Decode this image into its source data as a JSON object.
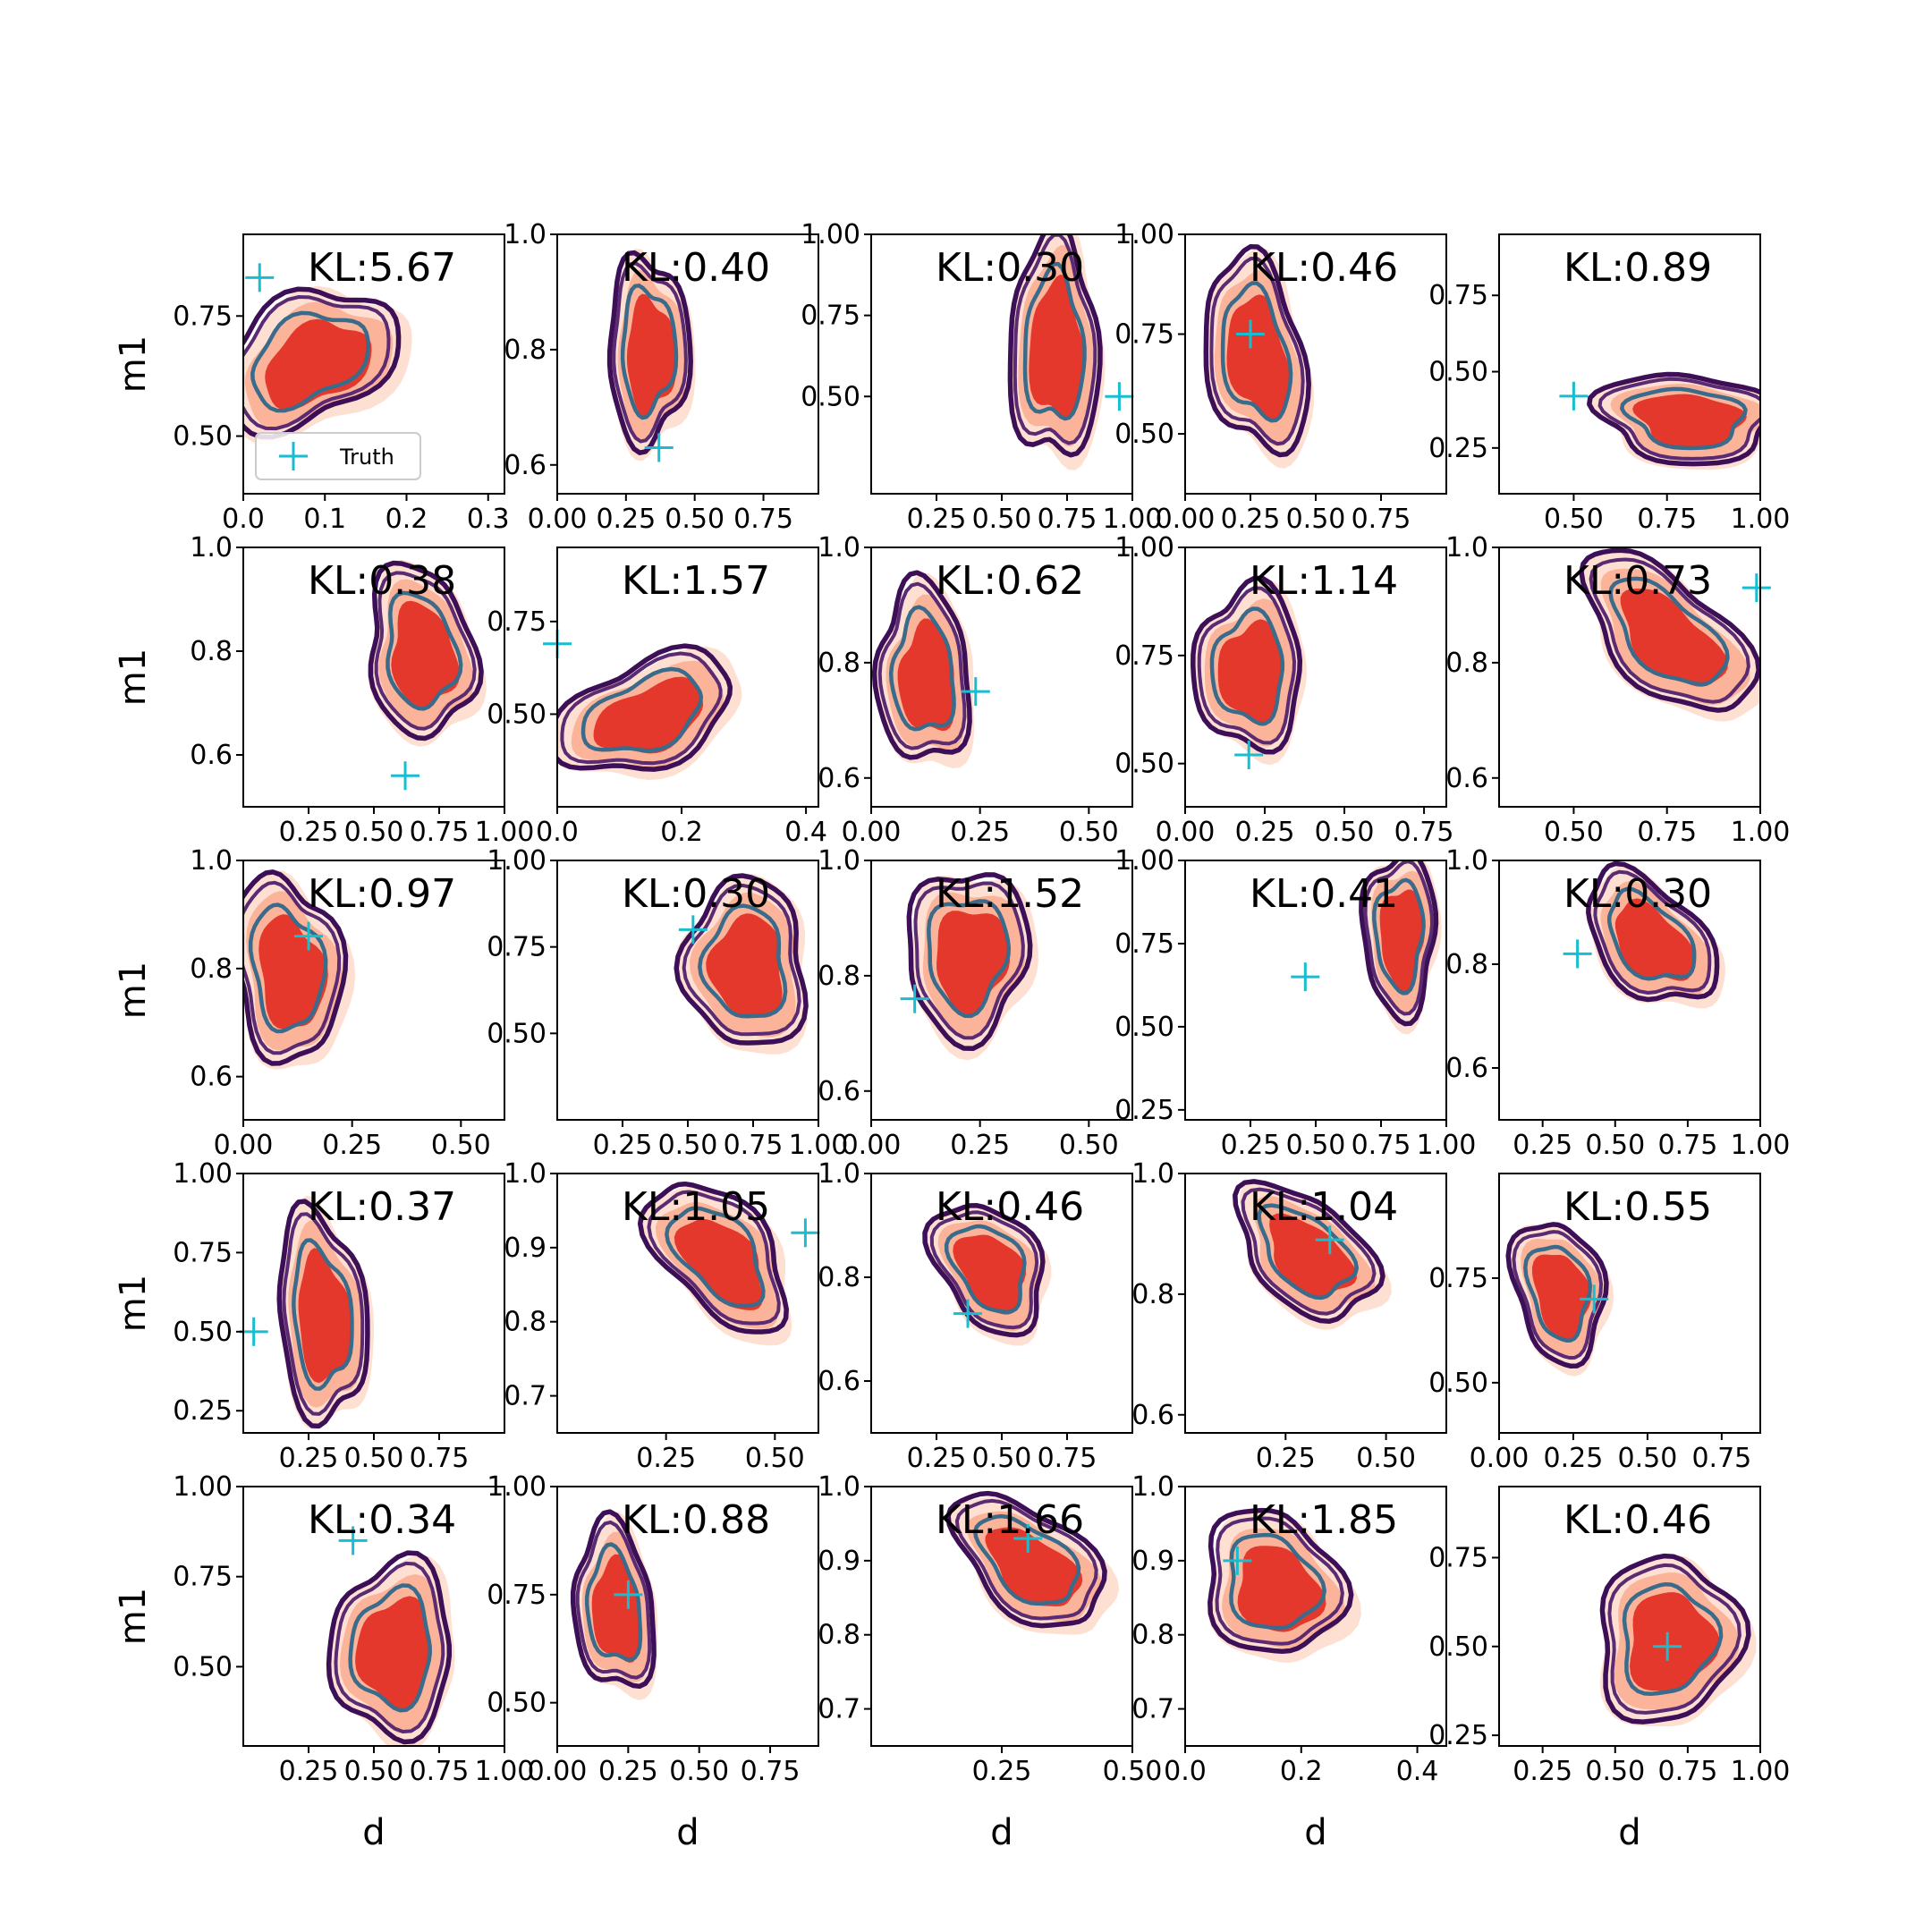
{
  "chart_data": {
    "type": "contour-grid",
    "rows": 5,
    "cols": 5,
    "xlabel": "d",
    "ylabel": "m1",
    "legend": {
      "label": "Truth",
      "placement": "lower-left",
      "panel": 0
    },
    "colors": {
      "truth_marker": "#17becf",
      "fill_levels": [
        "#fde0d2",
        "#fbb49a",
        "#e3382b"
      ],
      "contour_outer": "#3c0f57",
      "contour_mid": "#5a2a72",
      "contour_inner": "#3b6b8a"
    },
    "panels": [
      {
        "kl": "KL:5.67",
        "truth": [
          0.02,
          0.83
        ],
        "center": [
          0.08,
          0.66
        ],
        "spread": [
          0.08,
          0.13
        ],
        "tilt": -20,
        "xlim": [
          0.0,
          0.32
        ],
        "ylim": [
          0.38,
          0.92
        ],
        "xticks": [
          "0.0",
          "0.1",
          "0.2",
          "0.3"
        ],
        "xtick_values": [
          0.0,
          0.1,
          0.2,
          0.3
        ],
        "yticks": [
          "0.50",
          "0.75"
        ],
        "ytick_values": [
          0.5,
          0.75
        ]
      },
      {
        "kl": "KL:0.40",
        "truth": [
          0.37,
          0.63
        ],
        "center": [
          0.33,
          0.8
        ],
        "spread": [
          0.12,
          0.14
        ],
        "tilt": 10,
        "xlim": [
          0.0,
          0.95
        ],
        "ylim": [
          0.55,
          1.0
        ],
        "xticks": [
          "0.00",
          "0.25",
          "0.50",
          "0.75"
        ],
        "xtick_values": [
          0.0,
          0.25,
          0.5,
          0.75
        ],
        "yticks": [
          "0.6",
          "0.8",
          "1.0"
        ],
        "ytick_values": [
          0.6,
          0.8,
          1.0
        ]
      },
      {
        "kl": "KL:0.30",
        "truth": [
          0.95,
          0.5
        ],
        "center": [
          0.7,
          0.65
        ],
        "spread": [
          0.14,
          0.3
        ],
        "tilt": 0,
        "xlim": [
          0.0,
          1.0
        ],
        "ylim": [
          0.2,
          1.0
        ],
        "xticks": [
          "0.25",
          "0.50",
          "0.75",
          "1.00"
        ],
        "xtick_values": [
          0.25,
          0.5,
          0.75,
          1.0
        ],
        "yticks": [
          "0.50",
          "0.75",
          "1.00"
        ],
        "ytick_values": [
          0.5,
          0.75,
          1.0
        ]
      },
      {
        "kl": "KL:0.46",
        "truth": [
          0.25,
          0.75
        ],
        "center": [
          0.27,
          0.7
        ],
        "spread": [
          0.15,
          0.22
        ],
        "tilt": 20,
        "xlim": [
          0.0,
          1.0
        ],
        "ylim": [
          0.35,
          1.0
        ],
        "xticks": [
          "0.00",
          "0.25",
          "0.50",
          "0.75"
        ],
        "xtick_values": [
          0.0,
          0.25,
          0.5,
          0.75
        ],
        "yticks": [
          "0.50",
          "0.75",
          "1.00"
        ],
        "ytick_values": [
          0.5,
          0.75,
          1.0
        ]
      },
      {
        "kl": "KL:0.89",
        "truth": [
          0.5,
          0.42
        ],
        "center": [
          0.8,
          0.35
        ],
        "spread": [
          0.2,
          0.12
        ],
        "tilt": -5,
        "xlim": [
          0.3,
          1.0
        ],
        "ylim": [
          0.1,
          0.95
        ],
        "xticks": [
          "0.50",
          "0.75",
          "1.00"
        ],
        "xtick_values": [
          0.5,
          0.75,
          1.0
        ],
        "yticks": [
          "0.25",
          "0.50",
          "0.75"
        ],
        "ytick_values": [
          0.25,
          0.5,
          0.75
        ]
      },
      {
        "kl": "KL:0.38",
        "truth": [
          0.62,
          0.56
        ],
        "center": [
          0.68,
          0.8
        ],
        "spread": [
          0.18,
          0.13
        ],
        "tilt": -15,
        "xlim": [
          0.0,
          1.0
        ],
        "ylim": [
          0.5,
          1.0
        ],
        "xticks": [
          "0.25",
          "0.50",
          "0.75",
          "1.00"
        ],
        "xtick_values": [
          0.25,
          0.5,
          0.75,
          1.0
        ],
        "yticks": [
          "0.6",
          "0.8",
          "1.0"
        ],
        "ytick_values": [
          0.6,
          0.8,
          1.0
        ]
      },
      {
        "kl": "KL:1.57",
        "truth": [
          0.0,
          0.69
        ],
        "center": [
          0.14,
          0.5
        ],
        "spread": [
          0.1,
          0.15
        ],
        "tilt": -35,
        "xlim": [
          0.0,
          0.42
        ],
        "ylim": [
          0.25,
          0.95
        ],
        "xticks": [
          "0.0",
          "0.2",
          "0.4"
        ],
        "xtick_values": [
          0.0,
          0.2,
          0.4
        ],
        "yticks": [
          "0.50",
          "0.75"
        ],
        "ytick_values": [
          0.5,
          0.75
        ]
      },
      {
        "kl": "KL:0.62",
        "truth": [
          0.24,
          0.75
        ],
        "center": [
          0.12,
          0.78
        ],
        "spread": [
          0.09,
          0.13
        ],
        "tilt": 10,
        "xlim": [
          0.0,
          0.6
        ],
        "ylim": [
          0.55,
          1.0
        ],
        "xticks": [
          "0.00",
          "0.25",
          "0.50"
        ],
        "xtick_values": [
          0.0,
          0.25,
          0.5
        ],
        "yticks": [
          "0.6",
          "0.8",
          "1.0"
        ],
        "ytick_values": [
          0.6,
          0.8,
          1.0
        ]
      },
      {
        "kl": "KL:1.14",
        "truth": [
          0.2,
          0.52
        ],
        "center": [
          0.2,
          0.72
        ],
        "spread": [
          0.14,
          0.16
        ],
        "tilt": 15,
        "xlim": [
          0.0,
          0.82
        ],
        "ylim": [
          0.4,
          1.0
        ],
        "xticks": [
          "0.00",
          "0.25",
          "0.50",
          "0.75"
        ],
        "xtick_values": [
          0.0,
          0.25,
          0.5,
          0.75
        ],
        "yticks": [
          "0.50",
          "0.75",
          "1.00"
        ],
        "ytick_values": [
          0.5,
          0.75,
          1.0
        ]
      },
      {
        "kl": "KL:0.73",
        "truth": [
          0.99,
          0.93
        ],
        "center": [
          0.75,
          0.85
        ],
        "spread": [
          0.2,
          0.09
        ],
        "tilt": -25,
        "xlim": [
          0.3,
          1.0
        ],
        "ylim": [
          0.55,
          1.0
        ],
        "xticks": [
          "0.50",
          "0.75",
          "1.00"
        ],
        "xtick_values": [
          0.5,
          0.75,
          1.0
        ],
        "yticks": [
          "0.6",
          "0.8",
          "1.0"
        ],
        "ytick_values": [
          0.6,
          0.8,
          1.0
        ]
      },
      {
        "kl": "KL:0.97",
        "truth": [
          0.15,
          0.86
        ],
        "center": [
          0.1,
          0.8
        ],
        "spread": [
          0.1,
          0.15
        ],
        "tilt": 10,
        "xlim": [
          0.0,
          0.6
        ],
        "ylim": [
          0.52,
          1.0
        ],
        "xticks": [
          "0.00",
          "0.25",
          "0.50"
        ],
        "xtick_values": [
          0.0,
          0.25,
          0.5
        ],
        "yticks": [
          "0.6",
          "0.8",
          "1.0"
        ],
        "ytick_values": [
          0.6,
          0.8,
          1.0
        ]
      },
      {
        "kl": "KL:0.30",
        "truth": [
          0.52,
          0.8
        ],
        "center": [
          0.72,
          0.7
        ],
        "spread": [
          0.2,
          0.2
        ],
        "tilt": -20,
        "xlim": [
          0.0,
          1.0
        ],
        "ylim": [
          0.25,
          1.0
        ],
        "xticks": [
          "0.25",
          "0.50",
          "0.75",
          "1.00"
        ],
        "xtick_values": [
          0.25,
          0.5,
          0.75,
          1.0
        ],
        "yticks": [
          "0.50",
          "0.75",
          "1.00"
        ],
        "ytick_values": [
          0.5,
          0.75,
          1.0
        ]
      },
      {
        "kl": "KL:1.52",
        "truth": [
          0.1,
          0.76
        ],
        "center": [
          0.22,
          0.84
        ],
        "spread": [
          0.12,
          0.12
        ],
        "tilt": -40,
        "xlim": [
          0.0,
          0.6
        ],
        "ylim": [
          0.55,
          1.0
        ],
        "xticks": [
          "0.00",
          "0.25",
          "0.50"
        ],
        "xtick_values": [
          0.0,
          0.25,
          0.5
        ],
        "yticks": [
          "0.6",
          "0.8",
          "1.0"
        ],
        "ytick_values": [
          0.6,
          0.8,
          1.0
        ]
      },
      {
        "kl": "KL:0.41",
        "truth": [
          0.46,
          0.65
        ],
        "center": [
          0.82,
          0.78
        ],
        "spread": [
          0.12,
          0.2
        ],
        "tilt": 0,
        "xlim": [
          0.0,
          1.0
        ],
        "ylim": [
          0.22,
          1.0
        ],
        "xticks": [
          "0.25",
          "0.50",
          "0.75",
          "1.00"
        ],
        "xtick_values": [
          0.25,
          0.5,
          0.75,
          1.0
        ],
        "yticks": [
          "0.25",
          "0.50",
          "0.75",
          "1.00"
        ],
        "ytick_values": [
          0.25,
          0.5,
          0.75,
          1.0
        ]
      },
      {
        "kl": "KL:0.30",
        "truth": [
          0.37,
          0.82
        ],
        "center": [
          0.62,
          0.85
        ],
        "spread": [
          0.2,
          0.09
        ],
        "tilt": -20,
        "xlim": [
          0.1,
          1.0
        ],
        "ylim": [
          0.5,
          1.0
        ],
        "xticks": [
          "0.25",
          "0.50",
          "0.75",
          "1.00"
        ],
        "xtick_values": [
          0.25,
          0.5,
          0.75,
          1.0
        ],
        "yticks": [
          "0.6",
          "0.8",
          "1.0"
        ],
        "ytick_values": [
          0.6,
          0.8,
          1.0
        ]
      },
      {
        "kl": "KL:0.37",
        "truth": [
          0.04,
          0.5
        ],
        "center": [
          0.3,
          0.55
        ],
        "spread": [
          0.14,
          0.28
        ],
        "tilt": 10,
        "xlim": [
          0.0,
          1.0
        ],
        "ylim": [
          0.18,
          1.0
        ],
        "xticks": [
          "0.25",
          "0.50",
          "0.75"
        ],
        "xtick_values": [
          0.25,
          0.5,
          0.75
        ],
        "yticks": [
          "0.25",
          "0.50",
          "0.75",
          "1.00"
        ],
        "ytick_values": [
          0.25,
          0.5,
          0.75,
          1.0
        ]
      },
      {
        "kl": "KL:1.05",
        "truth": [
          0.57,
          0.92
        ],
        "center": [
          0.37,
          0.89
        ],
        "spread": [
          0.14,
          0.07
        ],
        "tilt": -25,
        "xlim": [
          0.0,
          0.6
        ],
        "ylim": [
          0.65,
          1.0
        ],
        "xticks": [
          "0.25",
          "0.50"
        ],
        "xtick_values": [
          0.25,
          0.5
        ],
        "yticks": [
          "0.7",
          "0.8",
          "0.9",
          "1.0"
        ],
        "ytick_values": [
          0.7,
          0.8,
          0.9,
          1.0
        ]
      },
      {
        "kl": "KL:0.46",
        "truth": [
          0.37,
          0.73
        ],
        "center": [
          0.45,
          0.82
        ],
        "spread": [
          0.18,
          0.1
        ],
        "tilt": -15,
        "xlim": [
          0.0,
          1.0
        ],
        "ylim": [
          0.5,
          1.0
        ],
        "xticks": [
          "0.25",
          "0.50",
          "0.75"
        ],
        "xtick_values": [
          0.25,
          0.5,
          0.75
        ],
        "yticks": [
          "0.6",
          "0.8",
          "1.0"
        ],
        "ytick_values": [
          0.6,
          0.8,
          1.0
        ]
      },
      {
        "kl": "KL:1.04",
        "truth": [
          0.36,
          0.89
        ],
        "center": [
          0.3,
          0.87
        ],
        "spread": [
          0.15,
          0.08
        ],
        "tilt": -20,
        "xlim": [
          0.0,
          0.65
        ],
        "ylim": [
          0.57,
          1.0
        ],
        "xticks": [
          "0.25",
          "0.50"
        ],
        "xtick_values": [
          0.25,
          0.5
        ],
        "yticks": [
          "0.6",
          "0.8",
          "1.0"
        ],
        "ytick_values": [
          0.6,
          0.8,
          1.0
        ]
      },
      {
        "kl": "KL:0.55",
        "truth": [
          0.32,
          0.7
        ],
        "center": [
          0.2,
          0.72
        ],
        "spread": [
          0.12,
          0.15
        ],
        "tilt": 25,
        "xlim": [
          0.0,
          0.88
        ],
        "ylim": [
          0.38,
          1.0
        ],
        "xticks": [
          "0.00",
          "0.25",
          "0.50",
          "0.75"
        ],
        "xtick_values": [
          0.0,
          0.25,
          0.5,
          0.75
        ],
        "yticks": [
          "0.50",
          "0.75"
        ],
        "ytick_values": [
          0.5,
          0.75
        ]
      },
      {
        "kl": "KL:0.34",
        "truth": [
          0.42,
          0.85
        ],
        "center": [
          0.57,
          0.55
        ],
        "spread": [
          0.2,
          0.2
        ],
        "tilt": -35,
        "xlim": [
          0.0,
          1.0
        ],
        "ylim": [
          0.28,
          1.0
        ],
        "xticks": [
          "0.25",
          "0.50",
          "0.75",
          "1.00"
        ],
        "xtick_values": [
          0.25,
          0.5,
          0.75,
          1.0
        ],
        "yticks": [
          "0.50",
          "0.75",
          "1.00"
        ],
        "ytick_values": [
          0.5,
          0.75,
          1.0
        ]
      },
      {
        "kl": "KL:0.88",
        "truth": [
          0.25,
          0.75
        ],
        "center": [
          0.2,
          0.72
        ],
        "spread": [
          0.12,
          0.16
        ],
        "tilt": 15,
        "xlim": [
          0.0,
          0.92
        ],
        "ylim": [
          0.4,
          1.0
        ],
        "xticks": [
          "0.00",
          "0.25",
          "0.50",
          "0.75"
        ],
        "xtick_values": [
          0.0,
          0.25,
          0.5,
          0.75
        ],
        "yticks": [
          "0.50",
          "0.75",
          "1.00"
        ],
        "ytick_values": [
          0.5,
          0.75,
          1.0
        ]
      },
      {
        "kl": "KL:1.66",
        "truth": [
          0.3,
          0.93
        ],
        "center": [
          0.3,
          0.9
        ],
        "spread": [
          0.13,
          0.06
        ],
        "tilt": -25,
        "xlim": [
          0.0,
          0.5
        ],
        "ylim": [
          0.65,
          1.0
        ],
        "xticks": [
          "0.25",
          "0.50"
        ],
        "xtick_values": [
          0.25,
          0.5
        ],
        "yticks": [
          "0.7",
          "0.8",
          "0.9",
          "1.0"
        ],
        "ytick_values": [
          0.7,
          0.8,
          0.9,
          1.0
        ]
      },
      {
        "kl": "KL:1.85",
        "truth": [
          0.09,
          0.9
        ],
        "center": [
          0.15,
          0.87
        ],
        "spread": [
          0.1,
          0.08
        ],
        "tilt": -25,
        "xlim": [
          0.0,
          0.45
        ],
        "ylim": [
          0.65,
          1.0
        ],
        "xticks": [
          "0.0",
          "0.2",
          "0.4"
        ],
        "xtick_values": [
          0.0,
          0.2,
          0.4
        ],
        "yticks": [
          "0.7",
          "0.8",
          "0.9",
          "1.0"
        ],
        "ytick_values": [
          0.7,
          0.8,
          0.9,
          1.0
        ]
      },
      {
        "kl": "KL:0.46",
        "truth": [
          0.68,
          0.5
        ],
        "center": [
          0.68,
          0.52
        ],
        "spread": [
          0.2,
          0.2
        ],
        "tilt": 10,
        "xlim": [
          0.1,
          1.0
        ],
        "ylim": [
          0.22,
          0.95
        ],
        "xticks": [
          "0.25",
          "0.50",
          "0.75",
          "1.00"
        ],
        "xtick_values": [
          0.25,
          0.5,
          0.75,
          1.0
        ],
        "yticks": [
          "0.25",
          "0.50",
          "0.75"
        ],
        "ytick_values": [
          0.25,
          0.5,
          0.75
        ]
      }
    ]
  }
}
